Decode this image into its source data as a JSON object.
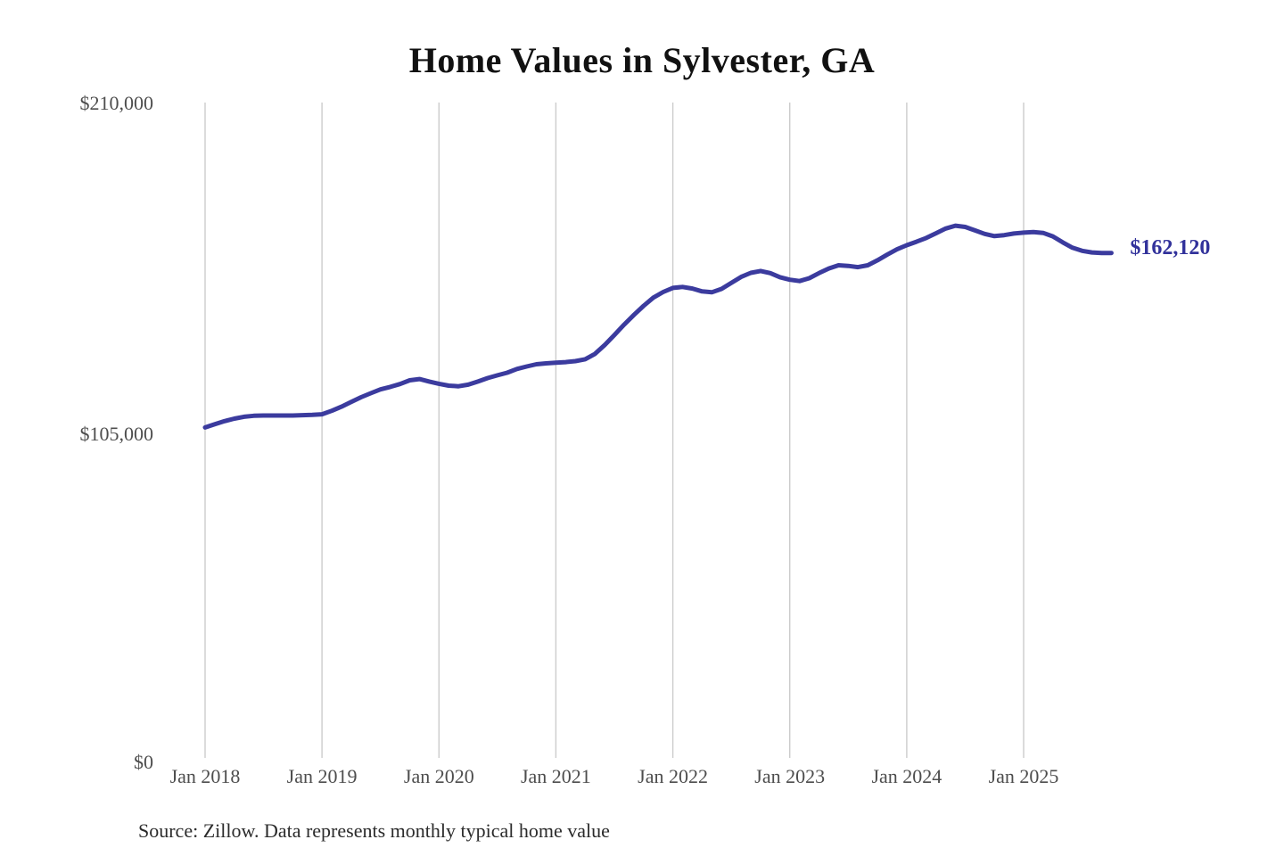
{
  "title": "Home Values in Sylvester, GA",
  "source_note": "Source: Zillow. Data represents monthly typical home value",
  "end_label": "$162,120",
  "colors": {
    "line": "#3b3b9e",
    "end_label_text": "#32329b",
    "grid": "#cccccc",
    "axis_text": "#4d4d4d",
    "title_text": "#111111",
    "source_text": "#2b2b2b",
    "background": "#ffffff"
  },
  "chart_data": {
    "type": "line",
    "title": "Home Values in Sylvester, GA",
    "xlabel": "",
    "ylabel": "",
    "unit": "USD",
    "ylim": [
      0,
      210000
    ],
    "y_tick_values": [
      0,
      105000,
      210000
    ],
    "y_tick_labels": [
      "$0",
      "$105,000",
      "$210,000"
    ],
    "x_tick_labels": [
      "Jan 2018",
      "Jan 2019",
      "Jan 2020",
      "Jan 2021",
      "Jan 2022",
      "Jan 2023",
      "Jan 2024",
      "Jan 2025"
    ],
    "grid": "vertical-only",
    "legend": "none",
    "final_value": 162120,
    "series": [
      {
        "name": "Monthly typical home value",
        "start_month": "2018-01",
        "end_month": "2025-10",
        "months": [
          "2018-01",
          "2018-02",
          "2018-03",
          "2018-04",
          "2018-05",
          "2018-06",
          "2018-07",
          "2018-08",
          "2018-09",
          "2018-10",
          "2018-11",
          "2018-12",
          "2019-01",
          "2019-02",
          "2019-03",
          "2019-04",
          "2019-05",
          "2019-06",
          "2019-07",
          "2019-08",
          "2019-09",
          "2019-10",
          "2019-11",
          "2019-12",
          "2020-01",
          "2020-02",
          "2020-03",
          "2020-04",
          "2020-05",
          "2020-06",
          "2020-07",
          "2020-08",
          "2020-09",
          "2020-10",
          "2020-11",
          "2020-12",
          "2021-01",
          "2021-02",
          "2021-03",
          "2021-04",
          "2021-05",
          "2021-06",
          "2021-07",
          "2021-08",
          "2021-09",
          "2021-10",
          "2021-11",
          "2021-12",
          "2022-01",
          "2022-02",
          "2022-03",
          "2022-04",
          "2022-05",
          "2022-06",
          "2022-07",
          "2022-08",
          "2022-09",
          "2022-10",
          "2022-11",
          "2022-12",
          "2023-01",
          "2023-02",
          "2023-03",
          "2023-04",
          "2023-05",
          "2023-06",
          "2023-07",
          "2023-08",
          "2023-09",
          "2023-10",
          "2023-11",
          "2023-12",
          "2024-01",
          "2024-02",
          "2024-03",
          "2024-04",
          "2024-05",
          "2024-06",
          "2024-07",
          "2024-08",
          "2024-09",
          "2024-10",
          "2024-11",
          "2024-12",
          "2025-01",
          "2025-02",
          "2025-03",
          "2025-04",
          "2025-05",
          "2025-06",
          "2025-07",
          "2025-08",
          "2025-09",
          "2025-10"
        ],
        "values": [
          106600,
          107600,
          108600,
          109400,
          110000,
          110300,
          110400,
          110400,
          110400,
          110400,
          110500,
          110600,
          110800,
          111900,
          113200,
          114700,
          116200,
          117500,
          118700,
          119500,
          120400,
          121600,
          122000,
          121200,
          120500,
          119900,
          119700,
          120200,
          121200,
          122300,
          123200,
          124000,
          125200,
          126000,
          126700,
          127000,
          127200,
          127400,
          127700,
          128300,
          130000,
          132800,
          136000,
          139300,
          142400,
          145300,
          147900,
          149700,
          151000,
          151300,
          150800,
          149900,
          149600,
          150700,
          152600,
          154500,
          155800,
          156400,
          155700,
          154400,
          153600,
          153200,
          154100,
          155700,
          157200,
          158200,
          158000,
          157600,
          158200,
          159800,
          161600,
          163300,
          164600,
          165700,
          166900,
          168400,
          169900,
          170800,
          170400,
          169300,
          168200,
          167500,
          167800,
          168300,
          168600,
          168800,
          168500,
          167400,
          165500,
          163800,
          162800,
          162300,
          162100,
          162120
        ]
      }
    ]
  }
}
